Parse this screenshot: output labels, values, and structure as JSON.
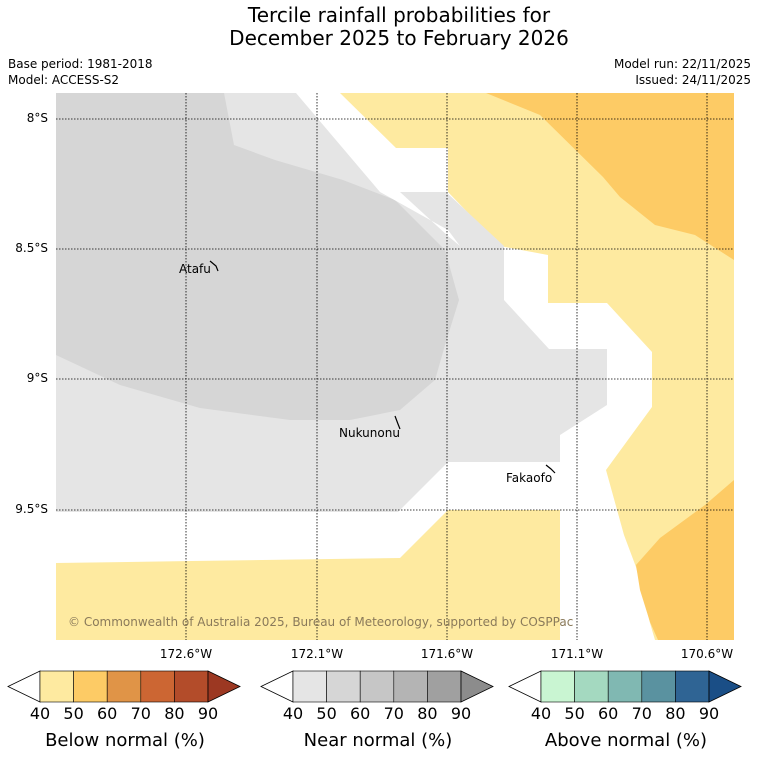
{
  "title_line1": "Tercile rainfall probabilities for",
  "title_line2": "December 2025 to February 2026",
  "base_period": "Base period: 1981-2018",
  "model": "Model: ACCESS-S2",
  "model_run": "Model run: 22/11/2025",
  "issued": "Issued: 24/11/2025",
  "lat_labels": [
    "8°S",
    "8.5°S",
    "9°S",
    "9.5°S"
  ],
  "lon_labels": [
    "172.6°W",
    "172.1°W",
    "171.6°W",
    "171.1°W",
    "170.6°W"
  ],
  "places": [
    "Atafu",
    "Nukunonu",
    "Fakaofo"
  ],
  "copyright": "© Commonwealth of Australia 2025, Bureau of Meteorology, supported by COSPPac",
  "colorbars": [
    {
      "title": "Below normal (%)",
      "ticks": [
        "40",
        "50",
        "60",
        "70",
        "80",
        "90"
      ],
      "colors": [
        "#ffffff",
        "#feeaa0",
        "#fdcb65",
        "#e09447",
        "#cc6633",
        "#b34c2a",
        "#9c3822"
      ]
    },
    {
      "title": "Near normal (%)",
      "ticks": [
        "40",
        "50",
        "60",
        "70",
        "80",
        "90"
      ],
      "colors": [
        "#ffffff",
        "#e5e5e5",
        "#d6d6d6",
        "#c6c6c6",
        "#b4b4b4",
        "#a0a0a0",
        "#8c8c8c"
      ]
    },
    {
      "title": "Above normal (%)",
      "ticks": [
        "40",
        "50",
        "60",
        "70",
        "80",
        "90"
      ],
      "colors": [
        "#ffffff",
        "#c9f5d2",
        "#a4d9c0",
        "#80b8b2",
        "#5a92a0",
        "#2f6494",
        "#1a4e86"
      ]
    }
  ]
}
